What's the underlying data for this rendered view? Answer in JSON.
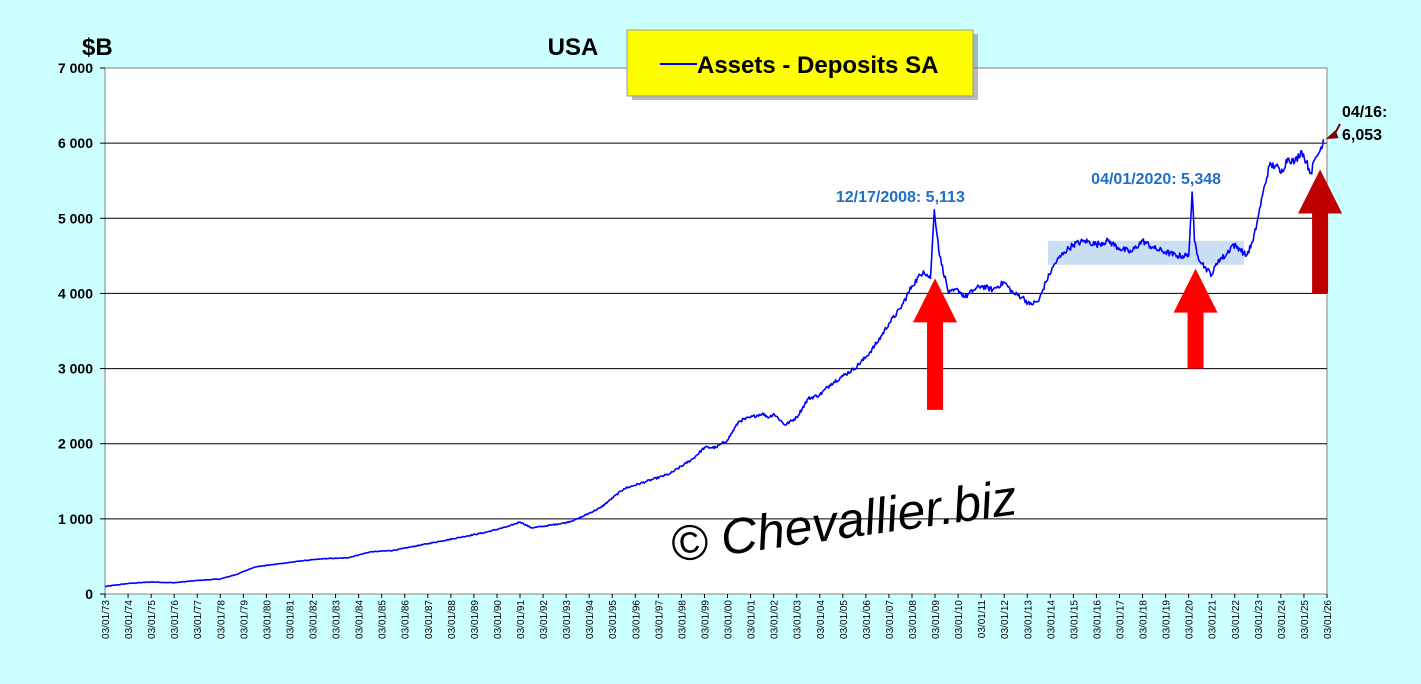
{
  "chart_data": {
    "type": "line",
    "title": "USA",
    "ylabel": "$B",
    "xlabel": "",
    "ylim": [
      0,
      7000
    ],
    "y_ticks": [
      "0",
      "1 000",
      "2 000",
      "3 000",
      "4 000",
      "5 000",
      "6 000",
      "7 000"
    ],
    "y_tick_values": [
      0,
      1000,
      2000,
      3000,
      4000,
      5000,
      6000,
      7000
    ],
    "x_ticks": [
      "03/01/73",
      "03/01/74",
      "03/01/75",
      "03/01/76",
      "03/01/77",
      "03/01/78",
      "03/01/79",
      "03/01/80",
      "03/01/81",
      "03/01/82",
      "03/01/83",
      "03/01/84",
      "03/01/85",
      "03/01/86",
      "03/01/87",
      "03/01/88",
      "03/01/89",
      "03/01/90",
      "03/01/91",
      "03/01/92",
      "03/01/93",
      "03/01/94",
      "03/01/95",
      "03/01/96",
      "03/01/97",
      "03/01/98",
      "03/01/99",
      "03/01/00",
      "03/01/01",
      "03/01/02",
      "03/01/03",
      "03/01/04",
      "03/01/05",
      "03/01/06",
      "03/01/07",
      "03/01/08",
      "03/01/09",
      "03/01/10",
      "03/01/11",
      "03/01/12",
      "03/01/13",
      "03/01/14",
      "03/01/15",
      "03/01/16",
      "03/01/17",
      "03/01/18",
      "03/01/19",
      "03/01/20",
      "03/01/21",
      "03/01/22",
      "03/01/23",
      "03/01/24",
      "03/01/25",
      "03/01/26"
    ],
    "grid": true,
    "legend": "top-center",
    "series": [
      {
        "name": "Assets - Deposits SA",
        "color": "#0000ff",
        "x": [
          1973.0,
          1974.0,
          1975.0,
          1976.0,
          1977.0,
          1978.0,
          1978.7,
          1979.5,
          1980.5,
          1981.5,
          1982.5,
          1983.5,
          1984.5,
          1985.5,
          1986.5,
          1987.5,
          1988.5,
          1989.5,
          1990.5,
          1991.0,
          1991.5,
          1992.0,
          1993.0,
          1993.5,
          1994.5,
          1995.5,
          1996.5,
          1997.5,
          1998.5,
          1999.0,
          1999.5,
          2000.0,
          2000.5,
          2001.0,
          2001.5,
          2001.8,
          2002.0,
          2002.5,
          2003.0,
          2003.5,
          2004.0,
          2004.5,
          2005.0,
          2005.5,
          2006.0,
          2006.5,
          2007.0,
          2007.5,
          2008.0,
          2008.5,
          2008.8,
          2008.97,
          2009.2,
          2009.6,
          2010.0,
          2010.3,
          2010.7,
          2011.0,
          2011.5,
          2012.0,
          2012.4,
          2012.8,
          2013.1,
          2013.5,
          2013.8,
          2014.2,
          2014.6,
          2015.0,
          2015.5,
          2016.0,
          2016.5,
          2017.0,
          2017.5,
          2018.0,
          2018.5,
          2019.0,
          2019.5,
          2020.0,
          2020.15,
          2020.25,
          2020.4,
          2020.7,
          2021.0,
          2021.3,
          2021.6,
          2021.9,
          2022.2,
          2022.5,
          2022.8,
          2023.0,
          2023.2,
          2023.5,
          2023.8,
          2024.0,
          2024.3,
          2024.6,
          2024.9,
          2025.1,
          2025.3,
          2025.5,
          2025.7,
          2025.85
        ],
        "y": [
          100,
          140,
          160,
          150,
          180,
          200,
          260,
          360,
          400,
          440,
          470,
          480,
          560,
          580,
          640,
          700,
          760,
          820,
          900,
          960,
          880,
          900,
          950,
          1000,
          1150,
          1400,
          1500,
          1600,
          1800,
          1950,
          1950,
          2050,
          2300,
          2350,
          2400,
          2350,
          2400,
          2250,
          2350,
          2600,
          2650,
          2800,
          2900,
          3000,
          3150,
          3350,
          3600,
          3800,
          4100,
          4300,
          4200,
          5113,
          4500,
          4000,
          4050,
          3950,
          4050,
          4100,
          4050,
          4150,
          4000,
          3950,
          3850,
          3900,
          4150,
          4400,
          4550,
          4650,
          4700,
          4650,
          4700,
          4600,
          4550,
          4700,
          4600,
          4550,
          4500,
          4500,
          5348,
          4700,
          4500,
          4350,
          4250,
          4450,
          4500,
          4650,
          4600,
          4500,
          4700,
          5000,
          5300,
          5700,
          5700,
          5600,
          5800,
          5750,
          5900,
          5750,
          5600,
          5800,
          5900,
          6053
        ]
      }
    ],
    "annotations": [
      {
        "text": "12/17/2008: 5,113",
        "x": 2008.97,
        "y": 5113
      },
      {
        "text": "04/01/2020: 5,348",
        "x": 2020.15,
        "y": 5348
      },
      {
        "text": "04/16:",
        "x": 2025.85,
        "y": 6053
      },
      {
        "text": "6,053",
        "x": 2025.85,
        "y": 6053
      }
    ],
    "highlight_band": {
      "x_start": 2013.9,
      "x_end": 2022.4,
      "y_low": 4380,
      "y_high": 4700,
      "color": "#b8d4f0"
    },
    "arrows": [
      {
        "x": 2009.0,
        "y_from": 2450,
        "y_to": 4200,
        "color": "#ff0000"
      },
      {
        "x": 2020.3,
        "y_from": 3000,
        "y_to": 4330,
        "color": "#ff0000"
      },
      {
        "x": 2025.7,
        "y_from": 4000,
        "y_to": 5650,
        "color": "#c00000"
      }
    ]
  },
  "watermark": "© Chevallier.biz"
}
